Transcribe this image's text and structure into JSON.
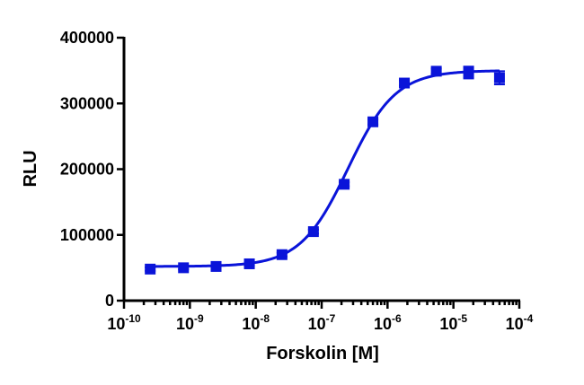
{
  "chart_data": {
    "type": "scatter",
    "xscale": "log",
    "xlim": [
      1e-10,
      0.0001
    ],
    "ylim": [
      0,
      400000
    ],
    "xlabel": "Forskolin [M]",
    "ylabel": "RLU",
    "y_ticks": [
      "0",
      "100000",
      "200000",
      "300000",
      "400000"
    ],
    "x_ticks": [
      {
        "base": "10",
        "exp": "-10"
      },
      {
        "base": "10",
        "exp": "-9"
      },
      {
        "base": "10",
        "exp": "-8"
      },
      {
        "base": "10",
        "exp": "-7"
      },
      {
        "base": "10",
        "exp": "-6"
      },
      {
        "base": "10",
        "exp": "-5"
      },
      {
        "base": "10",
        "exp": "-4"
      }
    ],
    "series": [
      {
        "color": "#0a14d9",
        "marker": "square",
        "points": [
          {
            "x": 2.5e-10,
            "y": 48000,
            "err": 2500
          },
          {
            "x": 8e-10,
            "y": 50000,
            "err": 2500
          },
          {
            "x": 2.5e-09,
            "y": 52000,
            "err": 2500
          },
          {
            "x": 8e-09,
            "y": 56000,
            "err": 2500
          },
          {
            "x": 2.5e-08,
            "y": 70000,
            "err": 3000
          },
          {
            "x": 7.5e-08,
            "y": 105000,
            "err": 3000
          },
          {
            "x": 2.2e-07,
            "y": 177000,
            "err": 3000
          },
          {
            "x": 6e-07,
            "y": 272000,
            "err": 4000
          },
          {
            "x": 1.8e-06,
            "y": 331000,
            "err": 4000
          },
          {
            "x": 5.5e-06,
            "y": 349000,
            "err": 4000
          },
          {
            "x": 1.7e-05,
            "y": 347000,
            "err": 9000
          },
          {
            "x": 5e-05,
            "y": 339000,
            "err": 10000
          }
        ]
      }
    ],
    "fit_curve": {
      "model": "four-parameter logistic",
      "bottom": 52000,
      "top": 350000,
      "log_ec50": -6.6,
      "hill_slope": 1.2,
      "log_x_range": [
        -9.6,
        -4.3
      ]
    }
  }
}
